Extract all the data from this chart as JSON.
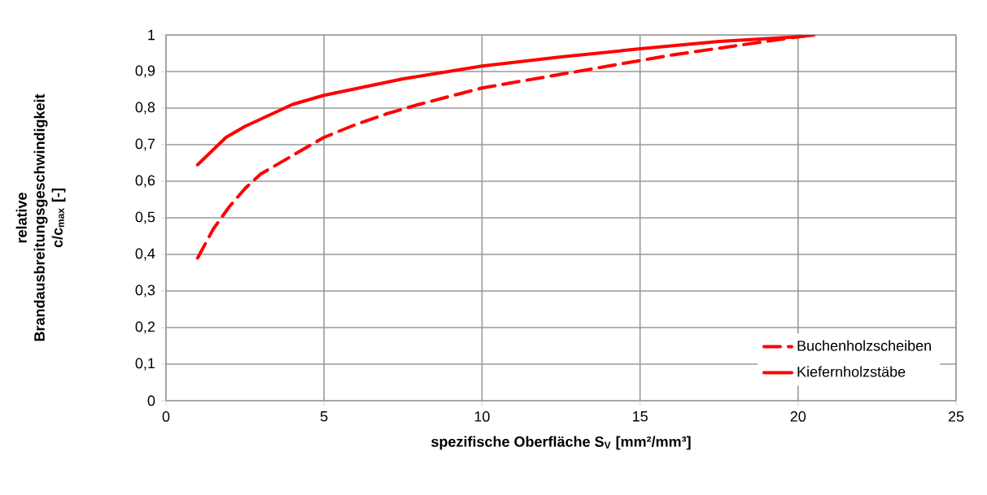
{
  "chart_data": {
    "type": "line",
    "xlabel": "spezifische Oberfläche S$_{V}$ [mm²/mm³]",
    "ylabel": "relative Brandausbreitungsgeschwindigkeit c/c$_{max}$ [-]",
    "xlim": [
      0,
      25
    ],
    "xticks": [
      0,
      5,
      10,
      15,
      20,
      25
    ],
    "ylim": [
      0,
      1
    ],
    "yticks": [
      0,
      {
        "value": 0.1,
        "label": "0,1"
      },
      {
        "value": 0.2,
        "label": "0,2"
      },
      {
        "value": 0.3,
        "label": "0,3"
      },
      {
        "value": 0.4,
        "label": "0,4"
      },
      {
        "value": 0.5,
        "label": "0,5"
      },
      {
        "value": 0.6,
        "label": "0,6"
      },
      {
        "value": 0.7,
        "label": "0,7"
      },
      {
        "value": 0.8,
        "label": "0,8"
      },
      {
        "value": 0.9,
        "label": "0,9"
      },
      1
    ],
    "grid": true,
    "legend": "bottom right",
    "marker": "none",
    "series": [
      {
        "name": "Buchenholzscheiben",
        "color": "#ff0000",
        "line_style": "dashed",
        "x": [
          1,
          1.5,
          2,
          2.5,
          3,
          4,
          5,
          6,
          7,
          8,
          10,
          12,
          14,
          16,
          18,
          20,
          20.5
        ],
        "values": [
          0.39,
          0.47,
          0.53,
          0.58,
          0.62,
          0.67,
          0.72,
          0.755,
          0.785,
          0.81,
          0.855,
          0.885,
          0.915,
          0.945,
          0.97,
          0.995,
          1.0
        ]
      },
      {
        "name": "Kiefernholzstäbe",
        "color": "#ff0000",
        "line_style": "solid",
        "x": [
          1,
          1.9,
          2.5,
          3,
          4,
          5,
          7.5,
          10,
          12.5,
          15,
          17.5,
          20,
          20.5
        ],
        "values": [
          0.645,
          0.72,
          0.75,
          0.77,
          0.81,
          0.835,
          0.88,
          0.915,
          0.94,
          0.962,
          0.982,
          0.995,
          1.0
        ]
      }
    ]
  }
}
